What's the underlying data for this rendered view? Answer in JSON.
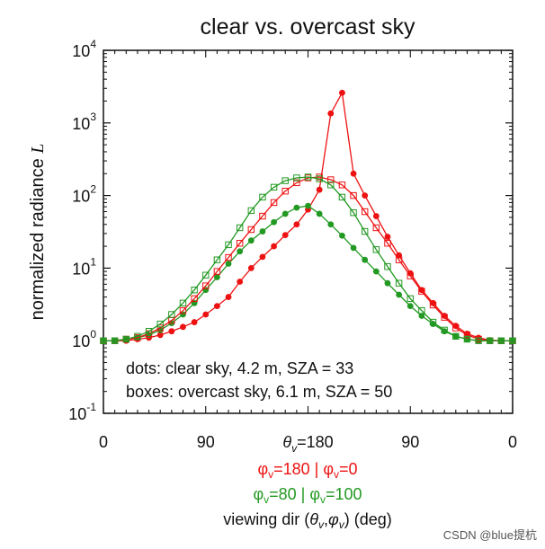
{
  "colors": {
    "red": "#ee1111",
    "green": "#229922",
    "axis": "#111111"
  },
  "chart_data": {
    "type": "line",
    "title": "clear vs. overcast sky",
    "ylabel": "normalized radiance",
    "ylabel_symbol": "L",
    "yscale": "log",
    "ylim": [
      0.1,
      10000
    ],
    "xlim": [
      0,
      36
    ],
    "y_ticks": [
      {
        "base": "10",
        "exp": "-1",
        "value": 0.1
      },
      {
        "base": "10",
        "exp": "0",
        "value": 1
      },
      {
        "base": "10",
        "exp": "1",
        "value": 10
      },
      {
        "base": "10",
        "exp": "2",
        "value": 100
      },
      {
        "base": "10",
        "exp": "3",
        "value": 1000
      },
      {
        "base": "10",
        "exp": "4",
        "value": 10000
      }
    ],
    "x_ticks": [
      {
        "label": "0",
        "pos": 0
      },
      {
        "label": "90",
        "pos": 9
      },
      {
        "label": "180",
        "pos": 18,
        "prefix": "θ",
        "sub": "v",
        "eq": "="
      },
      {
        "label": "90",
        "pos": 27
      },
      {
        "label": "0",
        "pos": 36
      }
    ],
    "x_axis_lines": {
      "red": {
        "part1": "φ",
        "sub1": "v",
        "val1": "=180 | ",
        "part2": "φ",
        "sub2": "v",
        "val2": "=0"
      },
      "green": {
        "part1": "φ",
        "sub1": "v",
        "val1": "=80 | ",
        "part2": "φ",
        "sub2": "v",
        "val2": "=100"
      },
      "black": {
        "pre": "viewing dir (",
        "a": "θ",
        "asub": "v",
        "mid": ",",
        "b": "φ",
        "bsub": "v",
        "post": ")  (deg)"
      }
    },
    "annotations": [
      "dots: clear sky, 4.2 m, SZA = 33",
      "boxes: overcast sky, 6.1 m, SZA = 50"
    ],
    "series": [
      {
        "name": "clear sky, φv=180|0",
        "color": "red",
        "marker": "dot",
        "x": [
          0,
          1,
          2,
          3,
          4,
          5,
          6,
          7,
          8,
          9,
          10,
          11,
          12,
          13,
          14,
          15,
          16,
          17,
          18,
          19,
          20,
          21,
          22,
          23,
          24,
          25,
          26,
          27,
          28,
          29,
          30,
          31,
          32,
          33,
          34,
          35,
          36
        ],
        "values": [
          1.0,
          1.0,
          1.0,
          1.05,
          1.1,
          1.2,
          1.35,
          1.55,
          1.8,
          2.3,
          3.0,
          4.0,
          6.5,
          10,
          14.3,
          20,
          28.5,
          40,
          64,
          120,
          1350,
          2600,
          200,
          100,
          52,
          27,
          15,
          8.5,
          5.0,
          3.3,
          2.2,
          1.6,
          1.25,
          1.1,
          1.02,
          1.0,
          1.0
        ]
      },
      {
        "name": "clear sky, φv=80|100",
        "color": "green",
        "marker": "dot",
        "x": [
          0,
          1,
          2,
          3,
          4,
          5,
          6,
          7,
          8,
          9,
          10,
          11,
          12,
          13,
          14,
          15,
          16,
          17,
          18,
          19,
          20,
          21,
          22,
          23,
          24,
          25,
          26,
          27,
          28,
          29,
          30,
          31,
          32,
          33,
          34,
          35,
          36
        ],
        "values": [
          1.0,
          1.0,
          1.05,
          1.1,
          1.2,
          1.4,
          1.75,
          2.3,
          3.3,
          5.0,
          7.5,
          11.5,
          17,
          24,
          32,
          43,
          56,
          68,
          72,
          56,
          40,
          28,
          19,
          13,
          9,
          6.2,
          4.3,
          3.0,
          2.2,
          1.7,
          1.35,
          1.15,
          1.05,
          1.0,
          1.0,
          1.0,
          1.0
        ]
      },
      {
        "name": "overcast sky, φv=180|0",
        "color": "red",
        "marker": "box",
        "x": [
          0,
          1,
          2,
          3,
          4,
          5,
          6,
          7,
          8,
          9,
          10,
          11,
          12,
          13,
          14,
          15,
          16,
          17,
          18,
          19,
          20,
          21,
          22,
          23,
          24,
          25,
          26,
          27,
          28,
          29,
          30,
          31,
          32,
          33,
          34,
          35,
          36
        ],
        "values": [
          1.0,
          1.0,
          1.05,
          1.1,
          1.25,
          1.5,
          1.9,
          2.6,
          3.8,
          5.7,
          9,
          14,
          22,
          34,
          52,
          80,
          115,
          150,
          175,
          180,
          165,
          140,
          100,
          60,
          36,
          22,
          13,
          7.8,
          4.8,
          3.1,
          2.1,
          1.5,
          1.2,
          1.05,
          1.0,
          1.0,
          1.0
        ]
      },
      {
        "name": "overcast sky, φv=80|100",
        "color": "green",
        "marker": "box",
        "x": [
          0,
          1,
          2,
          3,
          4,
          5,
          6,
          7,
          8,
          9,
          10,
          11,
          12,
          13,
          14,
          15,
          16,
          17,
          18,
          19,
          20,
          21,
          22,
          23,
          24,
          25,
          26,
          27,
          28,
          29,
          30,
          31,
          32,
          33,
          34,
          35,
          36
        ],
        "values": [
          1.0,
          1.0,
          1.05,
          1.15,
          1.35,
          1.7,
          2.3,
          3.3,
          5.0,
          8.0,
          13,
          21,
          36,
          62,
          95,
          130,
          160,
          175,
          180,
          170,
          140,
          95,
          58,
          32,
          18,
          10.5,
          6.2,
          3.8,
          2.6,
          1.8,
          1.4,
          1.15,
          1.05,
          1.0,
          1.0,
          1.0,
          1.0
        ]
      }
    ]
  },
  "watermark": "CSDN @blue提杭"
}
